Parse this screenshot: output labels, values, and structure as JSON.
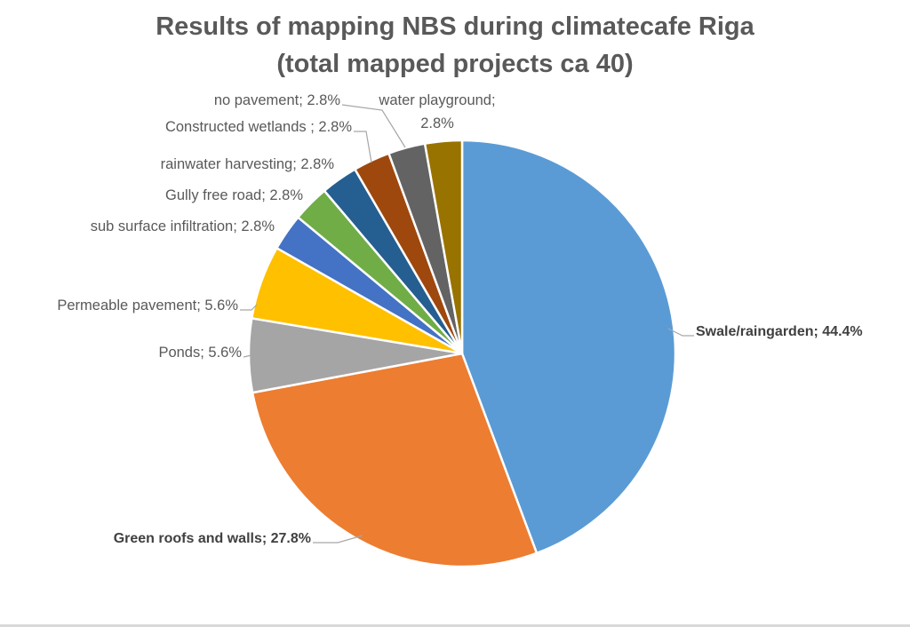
{
  "chart_data": {
    "type": "pie",
    "title_lines": [
      "Results of mapping NBS during climatecafe Riga",
      "(total mapped projects ca 40)"
    ],
    "legend": "none",
    "slices": [
      {
        "label": "Swale/raingarden",
        "value": 44.4,
        "value_text": "44.4%",
        "color": "#5b9bd5",
        "bold": true
      },
      {
        "label": "Green roofs and walls",
        "value": 27.8,
        "value_text": "27.8%",
        "color": "#ed7d31",
        "bold": true
      },
      {
        "label": "Ponds",
        "value": 5.6,
        "value_text": "5.6%",
        "color": "#a5a5a5",
        "bold": false
      },
      {
        "label": "Permeable pavement",
        "value": 5.6,
        "value_text": "5.6%",
        "color": "#ffc000",
        "bold": false
      },
      {
        "label": "sub surface infiltration",
        "value": 2.8,
        "value_text": "2.8%",
        "color": "#4472c4",
        "bold": false
      },
      {
        "label": "Gully free road",
        "value": 2.8,
        "value_text": "2.8%",
        "color": "#70ad47",
        "bold": false
      },
      {
        "label": "rainwater harvesting",
        "value": 2.8,
        "value_text": "2.8%",
        "color": "#255e91",
        "bold": false
      },
      {
        "label": "Constructed wetlands ",
        "value": 2.8,
        "value_text": "2.8%",
        "color": "#9e480e",
        "bold": false
      },
      {
        "label": "no pavement",
        "value": 2.8,
        "value_text": "2.8%",
        "color": "#636363",
        "bold": false
      },
      {
        "label": "water playground",
        "value": 2.8,
        "value_text": "2.8%",
        "color": "#997300",
        "bold": false
      }
    ]
  }
}
